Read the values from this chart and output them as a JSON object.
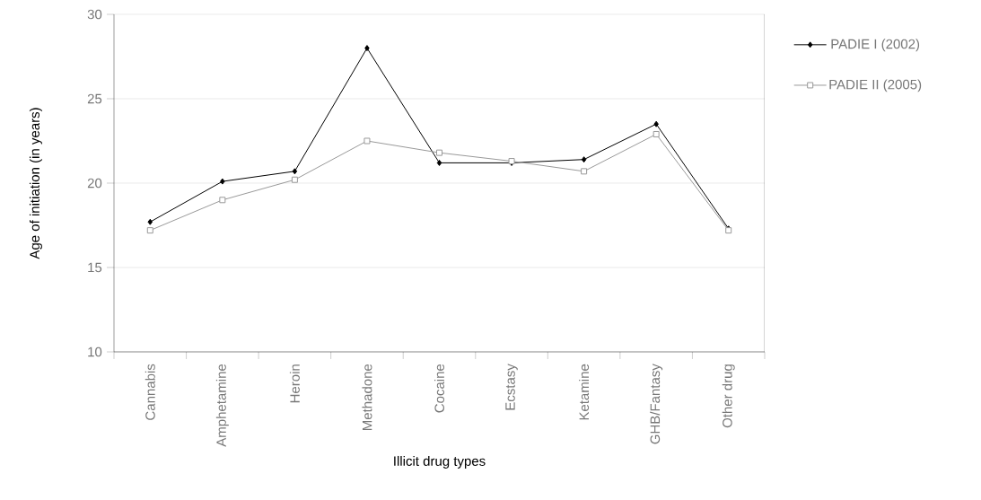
{
  "chart_data": {
    "type": "line",
    "xlabel": "Illicit drug types",
    "ylabel": "Age of initiation (in years)",
    "categories": [
      "Cannabis",
      "Amphetamine",
      "Heroin",
      "Methadone",
      "Cocaine",
      "Ecstasy",
      "Ketamine",
      "GHB/Fantasy",
      "Other drug"
    ],
    "series": [
      {
        "name": "PADIE I (2002)",
        "color": "#000000",
        "marker": "diamond",
        "values": [
          17.7,
          20.1,
          20.7,
          28.0,
          21.2,
          21.2,
          21.4,
          23.5,
          17.3
        ]
      },
      {
        "name": "PADIE II (2005)",
        "color": "#999999",
        "marker": "square",
        "values": [
          17.2,
          19.0,
          20.2,
          22.5,
          21.8,
          21.3,
          20.7,
          22.9,
          17.2
        ]
      }
    ],
    "ylim": [
      10,
      30
    ],
    "yticks": [
      10,
      15,
      20,
      25,
      30
    ],
    "grid": "y",
    "legend": "right",
    "line_style": "solid"
  }
}
